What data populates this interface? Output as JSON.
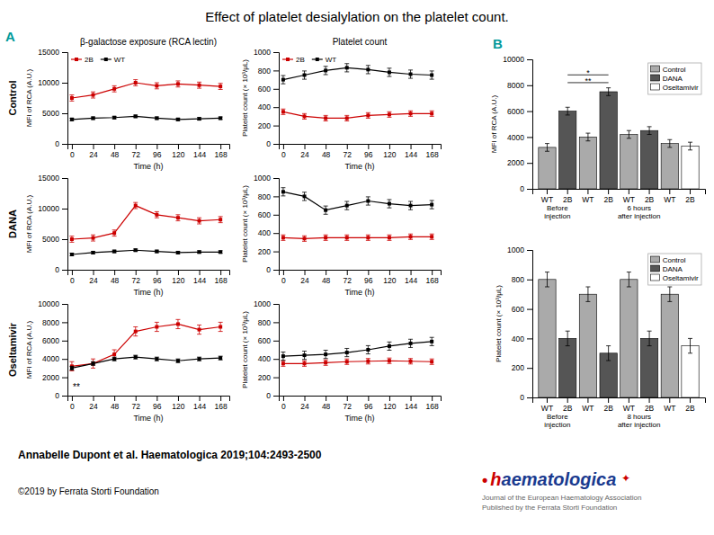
{
  "title": "Effect of platelet desialylation on the platelet count.",
  "annotations": [
    {
      "text": "A",
      "color": "#009999"
    },
    {
      "text": "B",
      "color": "#009999"
    },
    {
      "text": "Annabelle Dupont et al. Haematologica 2019;104:2493-2500"
    },
    {
      "text": "©2019 by Ferrata Storti Foundation"
    },
    {
      "text": "•",
      "color": "#cc0000"
    },
    {
      "text": "h",
      "color": "#cc0000"
    },
    {
      "text": "aematologica",
      "color": "#1a3a8f"
    },
    {
      "text": "✦",
      "color": "#cc0000"
    },
    {
      "text": "Journal of the European Haematology Association",
      "color": "#666666"
    },
    {
      "text": "Published by the Ferrata Storti Foundation",
      "color": "#666666"
    }
  ],
  "chart_data": [
    {
      "type": "line",
      "title": "β-galactose exposure (RCA lectin)",
      "xlabel": "Time (h)",
      "ylabel": "MFI of RCA (A.U.)",
      "x": [
        0,
        24,
        48,
        72,
        96,
        120,
        144,
        168
      ],
      "xlim": [
        -5,
        178
      ],
      "xticks": [
        0,
        24,
        48,
        72,
        96,
        120,
        144,
        168
      ],
      "ylim": [
        0,
        15000
      ],
      "yticks": [
        0,
        5000,
        10000,
        15000
      ],
      "marker": "square",
      "legend": "upper left",
      "annotations": [
        {
          "text": "Control"
        }
      ],
      "series": [
        {
          "name": "2B",
          "color": "#cc0000",
          "values": [
            7500,
            8000,
            9000,
            10000,
            9500,
            9800,
            9600,
            9400
          ],
          "error": 500
        },
        {
          "name": "WT",
          "color": "#000000",
          "values": [
            4000,
            4200,
            4300,
            4500,
            4200,
            4000,
            4100,
            4200
          ],
          "error": 200
        }
      ]
    },
    {
      "type": "line",
      "title": "Platelet count",
      "xlabel": "Time (h)",
      "ylabel": "Platelet count (× 10³/μL)",
      "x": [
        0,
        24,
        48,
        72,
        96,
        120,
        144,
        168
      ],
      "xlim": [
        -5,
        178
      ],
      "xticks": [
        0,
        24,
        48,
        72,
        96,
        120,
        144,
        168
      ],
      "ylim": [
        0,
        1000
      ],
      "yticks": [
        0,
        200,
        400,
        600,
        800,
        1000
      ],
      "marker": "square",
      "legend": "upper left",
      "series": [
        {
          "name": "2B",
          "color": "#cc0000",
          "values": [
            350,
            300,
            280,
            280,
            310,
            320,
            330,
            330
          ],
          "error": 30
        },
        {
          "name": "WT",
          "color": "#000000",
          "values": [
            700,
            750,
            800,
            830,
            810,
            780,
            760,
            750
          ],
          "error": 45
        }
      ]
    },
    {
      "type": "line",
      "xlabel": "Time (h)",
      "ylabel": "MFI of RCA (A.U.)",
      "x": [
        0,
        24,
        48,
        72,
        96,
        120,
        144,
        168
      ],
      "xlim": [
        -5,
        178
      ],
      "xticks": [
        0,
        24,
        48,
        72,
        96,
        120,
        144,
        168
      ],
      "ylim": [
        0,
        15000
      ],
      "yticks": [
        0,
        5000,
        10000,
        15000
      ],
      "marker": "square",
      "annotations": [
        {
          "text": "DANA"
        }
      ],
      "series": [
        {
          "name": "2B",
          "color": "#cc0000",
          "values": [
            5000,
            5200,
            6000,
            10500,
            9000,
            8500,
            8000,
            8200
          ],
          "error": 500
        },
        {
          "name": "WT",
          "color": "#000000",
          "values": [
            2500,
            2800,
            3000,
            3200,
            3000,
            2800,
            2900,
            2900
          ],
          "error": 200
        }
      ]
    },
    {
      "type": "line",
      "xlabel": "Time (h)",
      "ylabel": "Platelet count (× 10³/μL)",
      "x": [
        0,
        24,
        48,
        72,
        96,
        120,
        144,
        168
      ],
      "xlim": [
        -5,
        178
      ],
      "xticks": [
        0,
        24,
        48,
        72,
        96,
        120,
        144,
        168
      ],
      "ylim": [
        0,
        1000
      ],
      "yticks": [
        0,
        200,
        400,
        600,
        800,
        1000
      ],
      "marker": "square",
      "series": [
        {
          "name": "2B",
          "color": "#cc0000",
          "values": [
            350,
            340,
            350,
            350,
            350,
            350,
            360,
            360
          ],
          "error": 30
        },
        {
          "name": "WT",
          "color": "#000000",
          "values": [
            850,
            800,
            650,
            700,
            750,
            720,
            700,
            710
          ],
          "error": 45
        }
      ]
    },
    {
      "type": "line",
      "xlabel": "Time (h)",
      "ylabel": "MFI of RCA (A.U.)",
      "x": [
        0,
        24,
        48,
        72,
        96,
        120,
        144,
        168
      ],
      "xlim": [
        -5,
        178
      ],
      "xticks": [
        0,
        24,
        48,
        72,
        96,
        120,
        144,
        168
      ],
      "ylim": [
        0,
        10000
      ],
      "yticks": [
        0,
        2000,
        4000,
        6000,
        8000,
        10000
      ],
      "marker": "square",
      "annotations": [
        {
          "text": "Oseltamivir"
        },
        {
          "text": "**"
        }
      ],
      "series": [
        {
          "name": "2B",
          "color": "#cc0000",
          "values": [
            3200,
            3500,
            4500,
            7000,
            7500,
            7800,
            7200,
            7500
          ],
          "error": 500
        },
        {
          "name": "WT",
          "color": "#000000",
          "values": [
            3000,
            3500,
            4000,
            4200,
            4000,
            3800,
            4000,
            4100
          ],
          "error": 200
        }
      ]
    },
    {
      "type": "line",
      "xlabel": "Time (h)",
      "ylabel": "Platelet count (× 10³/μL)",
      "x": [
        0,
        24,
        48,
        72,
        96,
        120,
        144,
        168
      ],
      "xlim": [
        -5,
        178
      ],
      "xticks": [
        0,
        24,
        48,
        72,
        96,
        120,
        144,
        168
      ],
      "ylim": [
        0,
        1000
      ],
      "yticks": [
        0,
        200,
        400,
        600,
        800,
        1000
      ],
      "marker": "square",
      "series": [
        {
          "name": "2B",
          "color": "#cc0000",
          "values": [
            350,
            350,
            360,
            370,
            375,
            380,
            375,
            370
          ],
          "error": 30
        },
        {
          "name": "WT",
          "color": "#000000",
          "values": [
            430,
            440,
            450,
            470,
            500,
            540,
            570,
            590
          ],
          "error": 45
        }
      ]
    },
    {
      "type": "bar",
      "ylabel": "MFI of RCA (A.U.)",
      "categories": [
        "WT",
        "2B",
        "WT",
        "2B",
        "WT",
        "2B",
        "WT",
        "2B"
      ],
      "ylim": [
        0,
        10000
      ],
      "yticks": [
        0,
        2000,
        4000,
        6000,
        8000,
        10000
      ],
      "legend": "upper right",
      "annotations": [
        {
          "text": "Before\ninjection"
        },
        {
          "text": "6 hours\nafter injection"
        },
        {
          "text": "*",
          "y": 8800
        },
        {
          "text": "**",
          "y": 8200
        }
      ],
      "series": [
        {
          "name": "Control",
          "color": "#aaaaaa",
          "values": [
            3200,
            null,
            4000,
            null,
            4200,
            null,
            3500,
            null
          ],
          "error": 300
        },
        {
          "name": "DANA",
          "color": "#555555",
          "values": [
            null,
            6000,
            null,
            7500,
            null,
            4500,
            null,
            null
          ],
          "error": 300
        },
        {
          "name": "Oseltamivir",
          "color": "#ffffff",
          "values": [
            null,
            null,
            null,
            null,
            null,
            null,
            null,
            3300
          ],
          "error": 300
        }
      ]
    },
    {
      "type": "bar",
      "ylabel": "Platelet count (× 10³/μL)",
      "categories": [
        "WT",
        "2B",
        "WT",
        "2B",
        "WT",
        "2B",
        "WT",
        "2B"
      ],
      "ylim": [
        0,
        1000
      ],
      "yticks": [
        0,
        200,
        400,
        600,
        800,
        1000
      ],
      "legend": "upper right",
      "annotations": [
        {
          "text": "Before\ninjection"
        },
        {
          "text": "8 hours\nafter injection"
        }
      ],
      "series": [
        {
          "name": "Control",
          "color": "#aaaaaa",
          "values": [
            800,
            null,
            700,
            null,
            800,
            null,
            700,
            null
          ],
          "error": 50
        },
        {
          "name": "DANA",
          "color": "#555555",
          "values": [
            null,
            400,
            null,
            300,
            null,
            400,
            null,
            null
          ],
          "error": 50
        },
        {
          "name": "Oseltamivir",
          "color": "#ffffff",
          "values": [
            null,
            null,
            null,
            null,
            null,
            null,
            null,
            350
          ],
          "error": 50
        }
      ]
    }
  ]
}
